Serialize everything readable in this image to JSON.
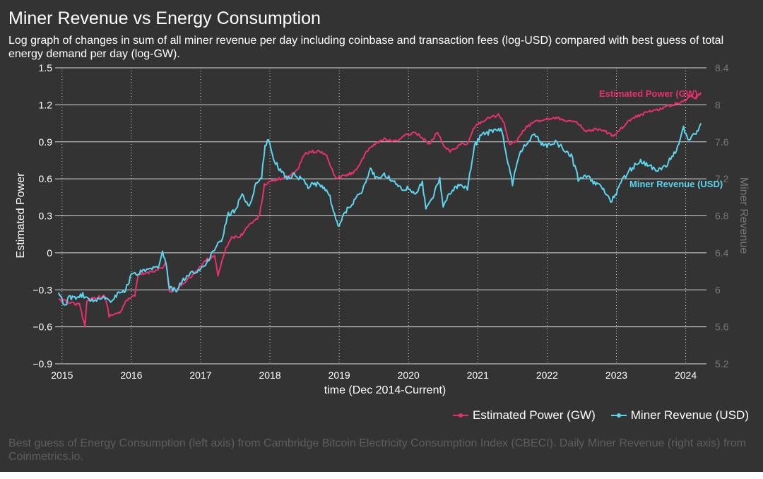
{
  "title": "Miner Revenue vs Energy Consumption",
  "subtitle": "Log graph of changes in sum of all miner revenue per day including coinbase and transaction fees (log-USD) compared with best guess of total energy demand per day (log-GW).",
  "caption": "Best guess of Energy Consumption (left axis) from Cambridge Bitcoin Electricity Consumption Index (CBECI). Daily Miner Revenue (right axis) from Coinmetrics.io.",
  "chart_data": {
    "type": "line",
    "xlabel": "time (Dec 2014-Current)",
    "ylabel": "Estimated Power",
    "y2label": "Miner Revenue",
    "xlim": [
      2014.9,
      2024.3
    ],
    "ylim": [
      -0.9,
      1.5
    ],
    "y2lim": [
      5.2,
      8.4
    ],
    "x_ticks": [
      2015,
      2016,
      2017,
      2018,
      2019,
      2020,
      2021,
      2022,
      2023,
      2024
    ],
    "y_ticks": [
      -0.9,
      -0.6,
      -0.3,
      0,
      0.3,
      0.6,
      0.9,
      1.2,
      1.5
    ],
    "y_tick_labels": [
      "−0.9",
      "−0.6",
      "−0.3",
      "0",
      "0.3",
      "0.6",
      "0.9",
      "1.2",
      "1.5"
    ],
    "y2_ticks": [
      5.2,
      5.6,
      6,
      6.4,
      6.8,
      7.2,
      7.6,
      8,
      8.4
    ],
    "y2_tick_labels": [
      "5.2",
      "5.6",
      "6",
      "6.4",
      "6.8",
      "7.2",
      "7.6",
      "8",
      "8.4"
    ],
    "grid": "horizontal solid, vertical dotted",
    "series": [
      {
        "name": "Estimated Power (GW)",
        "axis": "left",
        "color": "#e8306f",
        "annotation": "Estimated Power (GW)",
        "points": [
          [
            2014.95,
            -0.38
          ],
          [
            2015.1,
            -0.4
          ],
          [
            2015.25,
            -0.42
          ],
          [
            2015.33,
            -0.59
          ],
          [
            2015.36,
            -0.38
          ],
          [
            2015.5,
            -0.36
          ],
          [
            2015.62,
            -0.35
          ],
          [
            2015.68,
            -0.51
          ],
          [
            2015.85,
            -0.48
          ],
          [
            2015.93,
            -0.38
          ],
          [
            2016.05,
            -0.35
          ],
          [
            2016.1,
            -0.18
          ],
          [
            2016.25,
            -0.16
          ],
          [
            2016.45,
            -0.12
          ],
          [
            2016.5,
            -0.08
          ],
          [
            2016.55,
            -0.32
          ],
          [
            2016.65,
            -0.3
          ],
          [
            2016.8,
            -0.22
          ],
          [
            2016.95,
            -0.15
          ],
          [
            2017.05,
            -0.07
          ],
          [
            2017.2,
            -0.02
          ],
          [
            2017.25,
            -0.18
          ],
          [
            2017.35,
            0.02
          ],
          [
            2017.45,
            0.13
          ],
          [
            2017.55,
            0.12
          ],
          [
            2017.7,
            0.22
          ],
          [
            2017.85,
            0.3
          ],
          [
            2017.92,
            0.55
          ],
          [
            2018.0,
            0.58
          ],
          [
            2018.15,
            0.6
          ],
          [
            2018.3,
            0.63
          ],
          [
            2018.4,
            0.68
          ],
          [
            2018.5,
            0.8
          ],
          [
            2018.6,
            0.82
          ],
          [
            2018.75,
            0.82
          ],
          [
            2018.82,
            0.78
          ],
          [
            2018.88,
            0.7
          ],
          [
            2018.95,
            0.6
          ],
          [
            2019.05,
            0.62
          ],
          [
            2019.2,
            0.65
          ],
          [
            2019.3,
            0.72
          ],
          [
            2019.4,
            0.82
          ],
          [
            2019.5,
            0.88
          ],
          [
            2019.65,
            0.92
          ],
          [
            2019.8,
            0.9
          ],
          [
            2019.95,
            0.95
          ],
          [
            2020.1,
            0.98
          ],
          [
            2020.2,
            0.93
          ],
          [
            2020.3,
            0.88
          ],
          [
            2020.42,
            0.98
          ],
          [
            2020.5,
            0.88
          ],
          [
            2020.6,
            0.82
          ],
          [
            2020.75,
            0.88
          ],
          [
            2020.85,
            0.88
          ],
          [
            2020.95,
            1.02
          ],
          [
            2021.1,
            1.08
          ],
          [
            2021.2,
            1.1
          ],
          [
            2021.3,
            1.12
          ],
          [
            2021.38,
            1.05
          ],
          [
            2021.45,
            0.88
          ],
          [
            2021.55,
            0.9
          ],
          [
            2021.7,
            1.02
          ],
          [
            2021.85,
            1.07
          ],
          [
            2021.95,
            1.08
          ],
          [
            2022.1,
            1.1
          ],
          [
            2022.3,
            1.07
          ],
          [
            2022.45,
            1.05
          ],
          [
            2022.55,
            0.98
          ],
          [
            2022.7,
            1.0
          ],
          [
            2022.85,
            0.98
          ],
          [
            2022.95,
            0.95
          ],
          [
            2023.05,
            1.0
          ],
          [
            2023.2,
            1.08
          ],
          [
            2023.35,
            1.12
          ],
          [
            2023.5,
            1.15
          ],
          [
            2023.65,
            1.17
          ],
          [
            2023.8,
            1.2
          ],
          [
            2023.95,
            1.22
          ],
          [
            2024.05,
            1.27
          ],
          [
            2024.15,
            1.26
          ],
          [
            2024.22,
            1.3
          ]
        ]
      },
      {
        "name": "Miner Revenue (USD)",
        "axis": "right",
        "color": "#5bd4ee",
        "annotation": "Miner Revenue (USD)",
        "points": [
          [
            2014.95,
            5.97
          ],
          [
            2015.0,
            5.88
          ],
          [
            2015.05,
            5.82
          ],
          [
            2015.1,
            5.93
          ],
          [
            2015.2,
            5.9
          ],
          [
            2015.3,
            5.95
          ],
          [
            2015.4,
            5.88
          ],
          [
            2015.5,
            5.9
          ],
          [
            2015.6,
            5.93
          ],
          [
            2015.7,
            5.87
          ],
          [
            2015.8,
            5.96
          ],
          [
            2015.9,
            5.98
          ],
          [
            2016.0,
            6.15
          ],
          [
            2016.1,
            6.18
          ],
          [
            2016.2,
            6.2
          ],
          [
            2016.3,
            6.22
          ],
          [
            2016.4,
            6.25
          ],
          [
            2016.45,
            6.4
          ],
          [
            2016.5,
            6.28
          ],
          [
            2016.55,
            6.02
          ],
          [
            2016.65,
            6.0
          ],
          [
            2016.8,
            6.15
          ],
          [
            2016.95,
            6.2
          ],
          [
            2017.1,
            6.3
          ],
          [
            2017.2,
            6.45
          ],
          [
            2017.3,
            6.52
          ],
          [
            2017.4,
            6.82
          ],
          [
            2017.5,
            6.85
          ],
          [
            2017.6,
            7.05
          ],
          [
            2017.7,
            6.9
          ],
          [
            2017.8,
            7.15
          ],
          [
            2017.88,
            7.22
          ],
          [
            2017.93,
            7.55
          ],
          [
            2017.98,
            7.63
          ],
          [
            2018.05,
            7.4
          ],
          [
            2018.15,
            7.3
          ],
          [
            2018.25,
            7.2
          ],
          [
            2018.35,
            7.25
          ],
          [
            2018.45,
            7.2
          ],
          [
            2018.55,
            7.12
          ],
          [
            2018.65,
            7.15
          ],
          [
            2018.75,
            7.12
          ],
          [
            2018.85,
            7.05
          ],
          [
            2018.95,
            6.75
          ],
          [
            2019.0,
            6.7
          ],
          [
            2019.1,
            6.85
          ],
          [
            2019.25,
            7.0
          ],
          [
            2019.35,
            7.1
          ],
          [
            2019.45,
            7.3
          ],
          [
            2019.55,
            7.2
          ],
          [
            2019.65,
            7.25
          ],
          [
            2019.75,
            7.2
          ],
          [
            2019.85,
            7.1
          ],
          [
            2020.0,
            7.1
          ],
          [
            2020.1,
            7.05
          ],
          [
            2020.2,
            7.15
          ],
          [
            2020.25,
            6.9
          ],
          [
            2020.35,
            7.0
          ],
          [
            2020.45,
            7.2
          ],
          [
            2020.5,
            6.92
          ],
          [
            2020.6,
            7.05
          ],
          [
            2020.75,
            7.15
          ],
          [
            2020.85,
            7.1
          ],
          [
            2020.95,
            7.55
          ],
          [
            2021.05,
            7.68
          ],
          [
            2021.15,
            7.7
          ],
          [
            2021.25,
            7.73
          ],
          [
            2021.35,
            7.72
          ],
          [
            2021.42,
            7.42
          ],
          [
            2021.5,
            7.15
          ],
          [
            2021.6,
            7.48
          ],
          [
            2021.72,
            7.6
          ],
          [
            2021.82,
            7.7
          ],
          [
            2021.9,
            7.6
          ],
          [
            2022.0,
            7.55
          ],
          [
            2022.12,
            7.6
          ],
          [
            2022.25,
            7.52
          ],
          [
            2022.35,
            7.45
          ],
          [
            2022.45,
            7.2
          ],
          [
            2022.55,
            7.25
          ],
          [
            2022.65,
            7.18
          ],
          [
            2022.75,
            7.12
          ],
          [
            2022.85,
            7.05
          ],
          [
            2022.92,
            6.95
          ],
          [
            2023.0,
            7.05
          ],
          [
            2023.1,
            7.2
          ],
          [
            2023.2,
            7.3
          ],
          [
            2023.35,
            7.4
          ],
          [
            2023.45,
            7.35
          ],
          [
            2023.55,
            7.3
          ],
          [
            2023.7,
            7.32
          ],
          [
            2023.8,
            7.45
          ],
          [
            2023.9,
            7.55
          ],
          [
            2023.97,
            7.75
          ],
          [
            2024.05,
            7.62
          ],
          [
            2024.12,
            7.68
          ],
          [
            2024.18,
            7.72
          ],
          [
            2024.22,
            7.8
          ]
        ]
      }
    ]
  }
}
